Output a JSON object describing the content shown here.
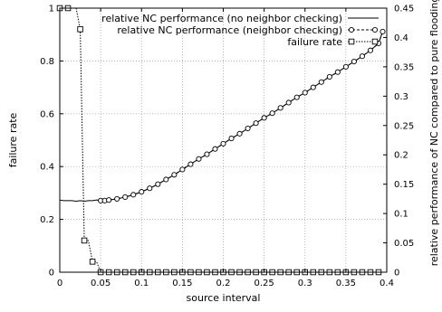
{
  "chart_data": {
    "type": "line",
    "title": "",
    "xlabel": "source interval",
    "ylabel_left": "failure rate",
    "ylabel_right": "relative performance of NC compared to pure flooding",
    "xlim": [
      0,
      0.4
    ],
    "ylim_left": [
      0,
      1
    ],
    "ylim_right": [
      0,
      0.45
    ],
    "grid": true,
    "legend_position": "top-right",
    "x_ticks": [
      "0",
      "0.05",
      "0.1",
      "0.15",
      "0.2",
      "0.25",
      "0.3",
      "0.35",
      "0.4"
    ],
    "y_left_ticks": [
      "0",
      "0.2",
      "0.4",
      "0.6",
      "0.8",
      "1"
    ],
    "y_right_ticks": [
      "0",
      "0.05",
      "0.1",
      "0.15",
      "0.2",
      "0.25",
      "0.3",
      "0.35",
      "0.4",
      "0.45"
    ],
    "series": [
      {
        "name": "relative NC performance (no neighbor checking)",
        "axis": "right",
        "style": "solid",
        "marker": "none",
        "color": "#000000",
        "x": [
          0.0,
          0.005,
          0.01,
          0.015,
          0.02,
          0.025,
          0.03,
          0.035,
          0.04,
          0.045,
          0.05,
          0.06,
          0.07,
          0.08,
          0.09,
          0.1,
          0.11,
          0.12,
          0.13,
          0.14,
          0.15,
          0.16,
          0.17,
          0.18,
          0.19,
          0.2,
          0.21,
          0.22,
          0.23,
          0.24,
          0.25,
          0.26,
          0.27,
          0.28,
          0.29,
          0.3,
          0.31,
          0.32,
          0.33,
          0.34,
          0.35,
          0.36,
          0.37,
          0.38,
          0.39,
          0.395
        ],
        "y": [
          0.123,
          0.122,
          0.122,
          0.122,
          0.121,
          0.122,
          0.121,
          0.122,
          0.122,
          0.123,
          0.122,
          0.123,
          0.125,
          0.128,
          0.132,
          0.137,
          0.143,
          0.15,
          0.158,
          0.166,
          0.175,
          0.184,
          0.193,
          0.201,
          0.21,
          0.219,
          0.228,
          0.236,
          0.245,
          0.254,
          0.263,
          0.271,
          0.28,
          0.289,
          0.298,
          0.306,
          0.315,
          0.324,
          0.333,
          0.341,
          0.35,
          0.359,
          0.368,
          0.378,
          0.39,
          0.41
        ]
      },
      {
        "name": "relative NC performance (neighbor checking)",
        "axis": "right",
        "style": "dashed",
        "marker": "circle",
        "color": "#000000",
        "x": [
          0.05,
          0.055,
          0.06,
          0.07,
          0.08,
          0.09,
          0.1,
          0.11,
          0.12,
          0.13,
          0.14,
          0.15,
          0.16,
          0.17,
          0.18,
          0.19,
          0.2,
          0.21,
          0.22,
          0.23,
          0.24,
          0.25,
          0.26,
          0.27,
          0.28,
          0.29,
          0.3,
          0.31,
          0.32,
          0.33,
          0.34,
          0.35,
          0.36,
          0.37,
          0.38,
          0.39,
          0.395
        ],
        "y": [
          0.122,
          0.122,
          0.123,
          0.125,
          0.128,
          0.132,
          0.137,
          0.143,
          0.15,
          0.158,
          0.166,
          0.175,
          0.184,
          0.193,
          0.201,
          0.21,
          0.219,
          0.228,
          0.236,
          0.245,
          0.254,
          0.263,
          0.271,
          0.28,
          0.289,
          0.298,
          0.306,
          0.315,
          0.324,
          0.333,
          0.341,
          0.35,
          0.359,
          0.368,
          0.378,
          0.39,
          0.41
        ]
      },
      {
        "name": "failure rate",
        "axis": "left",
        "style": "dotted",
        "marker": "square",
        "color": "#000000",
        "x": [
          0.0,
          0.005,
          0.01,
          0.015,
          0.02,
          0.025,
          0.03,
          0.035,
          0.04,
          0.045,
          0.05,
          0.055,
          0.06,
          0.065,
          0.07,
          0.075,
          0.08,
          0.085,
          0.09,
          0.095,
          0.1,
          0.105,
          0.11,
          0.115,
          0.12,
          0.125,
          0.13,
          0.135,
          0.14,
          0.145,
          0.15,
          0.155,
          0.16,
          0.165,
          0.17,
          0.175,
          0.18,
          0.185,
          0.19,
          0.195,
          0.2,
          0.205,
          0.21,
          0.215,
          0.22,
          0.225,
          0.23,
          0.235,
          0.24,
          0.245,
          0.25,
          0.255,
          0.26,
          0.265,
          0.27,
          0.275,
          0.28,
          0.285,
          0.29,
          0.295,
          0.3,
          0.305,
          0.31,
          0.315,
          0.32,
          0.325,
          0.33,
          0.335,
          0.34,
          0.345,
          0.35,
          0.355,
          0.36,
          0.365,
          0.37,
          0.375,
          0.38,
          0.385,
          0.39,
          0.395
        ],
        "y": [
          1.0,
          1.0,
          1.0,
          1.0,
          1.0,
          0.92,
          0.12,
          0.12,
          0.04,
          0.04,
          0.0,
          0.0,
          0.0,
          0.0,
          0.0,
          0.0,
          0.0,
          0.0,
          0.0,
          0.0,
          0.0,
          0.0,
          0.0,
          0.0,
          0.0,
          0.0,
          0.0,
          0.0,
          0.0,
          0.0,
          0.0,
          0.0,
          0.0,
          0.0,
          0.0,
          0.0,
          0.0,
          0.0,
          0.0,
          0.0,
          0.0,
          0.0,
          0.0,
          0.0,
          0.0,
          0.0,
          0.0,
          0.0,
          0.0,
          0.0,
          0.0,
          0.0,
          0.0,
          0.0,
          0.0,
          0.0,
          0.0,
          0.0,
          0.0,
          0.0,
          0.0,
          0.0,
          0.0,
          0.0,
          0.0,
          0.0,
          0.0,
          0.0,
          0.0,
          0.0,
          0.0,
          0.0,
          0.0,
          0.0,
          0.0,
          0.0,
          0.0,
          0.0,
          0.0,
          0.0
        ],
        "marker_x": [
          0.0,
          0.01,
          0.025,
          0.03,
          0.04,
          0.05,
          0.06,
          0.07,
          0.08,
          0.09,
          0.1,
          0.11,
          0.12,
          0.13,
          0.14,
          0.15,
          0.16,
          0.17,
          0.18,
          0.19,
          0.2,
          0.21,
          0.22,
          0.23,
          0.24,
          0.25,
          0.26,
          0.27,
          0.28,
          0.29,
          0.3,
          0.31,
          0.32,
          0.33,
          0.34,
          0.35,
          0.36,
          0.37,
          0.38,
          0.39
        ],
        "marker_y": [
          1.0,
          1.0,
          0.92,
          0.12,
          0.04,
          0.0,
          0.0,
          0.0,
          0.0,
          0.0,
          0.0,
          0.0,
          0.0,
          0.0,
          0.0,
          0.0,
          0.0,
          0.0,
          0.0,
          0.0,
          0.0,
          0.0,
          0.0,
          0.0,
          0.0,
          0.0,
          0.0,
          0.0,
          0.0,
          0.0,
          0.0,
          0.0,
          0.0,
          0.0,
          0.0,
          0.0,
          0.0,
          0.0,
          0.0,
          0.0
        ]
      }
    ]
  }
}
